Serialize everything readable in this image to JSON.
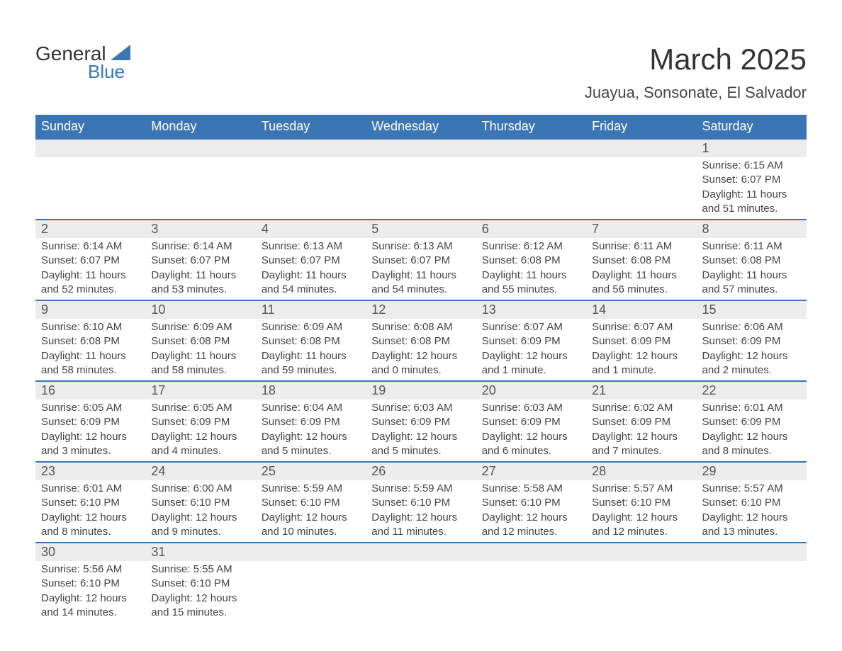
{
  "logo": {
    "word1": "General",
    "word2": "Blue",
    "triangle_color": "#3a76b6"
  },
  "title": "March 2025",
  "location": "Juayua, Sonsonate, El Salvador",
  "colors": {
    "header_bg": "#3a76b6",
    "header_text": "#ffffff",
    "daynum_bg": "#ececec",
    "border": "#3a76b6",
    "text": "#444444"
  },
  "weekdays": [
    "Sunday",
    "Monday",
    "Tuesday",
    "Wednesday",
    "Thursday",
    "Friday",
    "Saturday"
  ],
  "weeks": [
    [
      null,
      null,
      null,
      null,
      null,
      null,
      {
        "n": "1",
        "sr": "Sunrise: 6:15 AM",
        "ss": "Sunset: 6:07 PM",
        "d1": "Daylight: 11 hours",
        "d2": "and 51 minutes."
      }
    ],
    [
      {
        "n": "2",
        "sr": "Sunrise: 6:14 AM",
        "ss": "Sunset: 6:07 PM",
        "d1": "Daylight: 11 hours",
        "d2": "and 52 minutes."
      },
      {
        "n": "3",
        "sr": "Sunrise: 6:14 AM",
        "ss": "Sunset: 6:07 PM",
        "d1": "Daylight: 11 hours",
        "d2": "and 53 minutes."
      },
      {
        "n": "4",
        "sr": "Sunrise: 6:13 AM",
        "ss": "Sunset: 6:07 PM",
        "d1": "Daylight: 11 hours",
        "d2": "and 54 minutes."
      },
      {
        "n": "5",
        "sr": "Sunrise: 6:13 AM",
        "ss": "Sunset: 6:07 PM",
        "d1": "Daylight: 11 hours",
        "d2": "and 54 minutes."
      },
      {
        "n": "6",
        "sr": "Sunrise: 6:12 AM",
        "ss": "Sunset: 6:08 PM",
        "d1": "Daylight: 11 hours",
        "d2": "and 55 minutes."
      },
      {
        "n": "7",
        "sr": "Sunrise: 6:11 AM",
        "ss": "Sunset: 6:08 PM",
        "d1": "Daylight: 11 hours",
        "d2": "and 56 minutes."
      },
      {
        "n": "8",
        "sr": "Sunrise: 6:11 AM",
        "ss": "Sunset: 6:08 PM",
        "d1": "Daylight: 11 hours",
        "d2": "and 57 minutes."
      }
    ],
    [
      {
        "n": "9",
        "sr": "Sunrise: 6:10 AM",
        "ss": "Sunset: 6:08 PM",
        "d1": "Daylight: 11 hours",
        "d2": "and 58 minutes."
      },
      {
        "n": "10",
        "sr": "Sunrise: 6:09 AM",
        "ss": "Sunset: 6:08 PM",
        "d1": "Daylight: 11 hours",
        "d2": "and 58 minutes."
      },
      {
        "n": "11",
        "sr": "Sunrise: 6:09 AM",
        "ss": "Sunset: 6:08 PM",
        "d1": "Daylight: 11 hours",
        "d2": "and 59 minutes."
      },
      {
        "n": "12",
        "sr": "Sunrise: 6:08 AM",
        "ss": "Sunset: 6:08 PM",
        "d1": "Daylight: 12 hours",
        "d2": "and 0 minutes."
      },
      {
        "n": "13",
        "sr": "Sunrise: 6:07 AM",
        "ss": "Sunset: 6:09 PM",
        "d1": "Daylight: 12 hours",
        "d2": "and 1 minute."
      },
      {
        "n": "14",
        "sr": "Sunrise: 6:07 AM",
        "ss": "Sunset: 6:09 PM",
        "d1": "Daylight: 12 hours",
        "d2": "and 1 minute."
      },
      {
        "n": "15",
        "sr": "Sunrise: 6:06 AM",
        "ss": "Sunset: 6:09 PM",
        "d1": "Daylight: 12 hours",
        "d2": "and 2 minutes."
      }
    ],
    [
      {
        "n": "16",
        "sr": "Sunrise: 6:05 AM",
        "ss": "Sunset: 6:09 PM",
        "d1": "Daylight: 12 hours",
        "d2": "and 3 minutes."
      },
      {
        "n": "17",
        "sr": "Sunrise: 6:05 AM",
        "ss": "Sunset: 6:09 PM",
        "d1": "Daylight: 12 hours",
        "d2": "and 4 minutes."
      },
      {
        "n": "18",
        "sr": "Sunrise: 6:04 AM",
        "ss": "Sunset: 6:09 PM",
        "d1": "Daylight: 12 hours",
        "d2": "and 5 minutes."
      },
      {
        "n": "19",
        "sr": "Sunrise: 6:03 AM",
        "ss": "Sunset: 6:09 PM",
        "d1": "Daylight: 12 hours",
        "d2": "and 5 minutes."
      },
      {
        "n": "20",
        "sr": "Sunrise: 6:03 AM",
        "ss": "Sunset: 6:09 PM",
        "d1": "Daylight: 12 hours",
        "d2": "and 6 minutes."
      },
      {
        "n": "21",
        "sr": "Sunrise: 6:02 AM",
        "ss": "Sunset: 6:09 PM",
        "d1": "Daylight: 12 hours",
        "d2": "and 7 minutes."
      },
      {
        "n": "22",
        "sr": "Sunrise: 6:01 AM",
        "ss": "Sunset: 6:09 PM",
        "d1": "Daylight: 12 hours",
        "d2": "and 8 minutes."
      }
    ],
    [
      {
        "n": "23",
        "sr": "Sunrise: 6:01 AM",
        "ss": "Sunset: 6:10 PM",
        "d1": "Daylight: 12 hours",
        "d2": "and 8 minutes."
      },
      {
        "n": "24",
        "sr": "Sunrise: 6:00 AM",
        "ss": "Sunset: 6:10 PM",
        "d1": "Daylight: 12 hours",
        "d2": "and 9 minutes."
      },
      {
        "n": "25",
        "sr": "Sunrise: 5:59 AM",
        "ss": "Sunset: 6:10 PM",
        "d1": "Daylight: 12 hours",
        "d2": "and 10 minutes."
      },
      {
        "n": "26",
        "sr": "Sunrise: 5:59 AM",
        "ss": "Sunset: 6:10 PM",
        "d1": "Daylight: 12 hours",
        "d2": "and 11 minutes."
      },
      {
        "n": "27",
        "sr": "Sunrise: 5:58 AM",
        "ss": "Sunset: 6:10 PM",
        "d1": "Daylight: 12 hours",
        "d2": "and 12 minutes."
      },
      {
        "n": "28",
        "sr": "Sunrise: 5:57 AM",
        "ss": "Sunset: 6:10 PM",
        "d1": "Daylight: 12 hours",
        "d2": "and 12 minutes."
      },
      {
        "n": "29",
        "sr": "Sunrise: 5:57 AM",
        "ss": "Sunset: 6:10 PM",
        "d1": "Daylight: 12 hours",
        "d2": "and 13 minutes."
      }
    ],
    [
      {
        "n": "30",
        "sr": "Sunrise: 5:56 AM",
        "ss": "Sunset: 6:10 PM",
        "d1": "Daylight: 12 hours",
        "d2": "and 14 minutes."
      },
      {
        "n": "31",
        "sr": "Sunrise: 5:55 AM",
        "ss": "Sunset: 6:10 PM",
        "d1": "Daylight: 12 hours",
        "d2": "and 15 minutes."
      },
      null,
      null,
      null,
      null,
      null
    ]
  ]
}
